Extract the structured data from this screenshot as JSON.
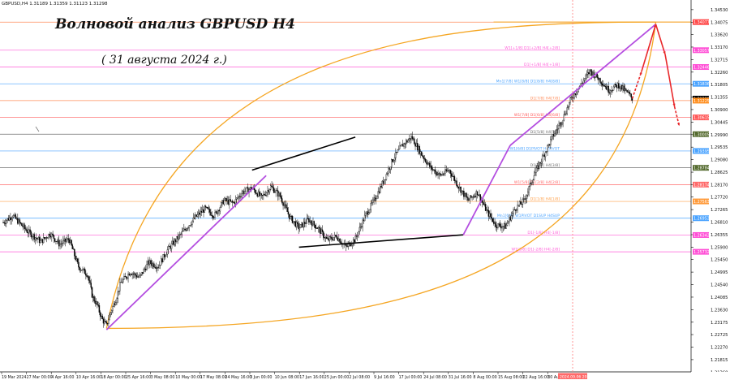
{
  "symbol_info": {
    "symbol": "GBPUSD,H4",
    "ohlc": "1.31189 1.31359 1.31123 1.31298"
  },
  "overlay": {
    "title": "Волновой анализ GBPUSD H4",
    "date": "( 31 августа 2024 г.)"
  },
  "colors": {
    "candle": "#000000",
    "trend_line": "#000000",
    "channel": "#b44ee0",
    "arc": "#f5a623",
    "forecast": "#e8282b",
    "current_price_bg": "#000000",
    "grid_blue": "#4aa3ff",
    "grid_pink": "#ff5bd8",
    "grid_orange": "#ff8c5a",
    "grid_gray": "#9a9a9a",
    "grid_green": "#3a6e3a"
  },
  "chart_data": {
    "type": "line",
    "title": "",
    "y_axis": {
      "ylim": [
        1.2137,
        1.3488
      ],
      "ticks": [
        "1.34530",
        "1.34075",
        "1.33620",
        "1.33170",
        "1.32715",
        "1.32260",
        "1.31805",
        "1.31355",
        "1.30900",
        "1.30445",
        "1.29990",
        "1.29535",
        "1.29080",
        "1.28625",
        "1.28170",
        "1.27720",
        "1.27265",
        "1.26810",
        "1.26355",
        "1.25900",
        "1.25450",
        "1.24995",
        "1.24540",
        "1.24085",
        "1.23630",
        "1.23175",
        "1.22725",
        "1.22270",
        "1.21815",
        "1.21360"
      ]
    },
    "x_axis": {
      "labels": [
        "19 Mar 2024",
        "27 Mar 00:00",
        "4 Apr 16:00",
        "10 Apr 16:00",
        "18 Apr 00:00",
        "25 Apr 16:00",
        "3 May 08:00",
        "10 May 00:00",
        "17 May 08:00",
        "24 May 16:00",
        "3 Jun 00:00",
        "10 Jun 08:00",
        "17 Jun 16:00",
        "25 Jun 00:00",
        "2 Jul 08:00",
        "9 Jul 16:00",
        "17 Jul 00:00",
        "24 Jul 08:00",
        "31 Jul 16:00",
        "8 Aug 00:00",
        "15 Aug 08:00",
        "22 Aug 16:00",
        "30 Aug 00:00"
      ],
      "highlighted_label": "2024.09.06 20:00"
    },
    "price_path": [
      [
        0,
        1.268
      ],
      [
        2,
        1.2705
      ],
      [
        5,
        1.265
      ],
      [
        8,
        1.261
      ],
      [
        10,
        1.264
      ],
      [
        12,
        1.26
      ],
      [
        14,
        1.262
      ],
      [
        16,
        1.252
      ],
      [
        18,
        1.249
      ],
      [
        19,
        1.241
      ],
      [
        20,
        1.238
      ],
      [
        21,
        1.233
      ],
      [
        22,
        1.2305
      ],
      [
        23,
        1.236
      ],
      [
        24,
        1.24
      ],
      [
        25,
        1.246
      ],
      [
        27,
        1.25
      ],
      [
        29,
        1.248
      ],
      [
        31,
        1.2535
      ],
      [
        33,
        1.252
      ],
      [
        35,
        1.258
      ],
      [
        37,
        1.262
      ],
      [
        39,
        1.266
      ],
      [
        41,
        1.27
      ],
      [
        43,
        1.273
      ],
      [
        45,
        1.2705
      ],
      [
        47,
        1.276
      ],
      [
        49,
        1.275
      ],
      [
        51,
        1.279
      ],
      [
        53,
        1.2805
      ],
      [
        55,
        1.277
      ],
      [
        57,
        1.281
      ],
      [
        59,
        1.2775
      ],
      [
        61,
        1.27
      ],
      [
        63,
        1.266
      ],
      [
        65,
        1.269
      ],
      [
        67,
        1.266
      ],
      [
        69,
        1.2615
      ],
      [
        71,
        1.263
      ],
      [
        73,
        1.259
      ],
      [
        75,
        1.262
      ],
      [
        77,
        1.27
      ],
      [
        79,
        1.276
      ],
      [
        81,
        1.283
      ],
      [
        83,
        1.291
      ],
      [
        85,
        1.296
      ],
      [
        87,
        1.299
      ],
      [
        89,
        1.293
      ],
      [
        91,
        1.288
      ],
      [
        93,
        1.285
      ],
      [
        95,
        1.287
      ],
      [
        97,
        1.281
      ],
      [
        99,
        1.276
      ],
      [
        101,
        1.279
      ],
      [
        103,
        1.272
      ],
      [
        105,
        1.267
      ],
      [
        107,
        1.2665
      ],
      [
        109,
        1.273
      ],
      [
        111,
        1.276
      ],
      [
        113,
        1.285
      ],
      [
        115,
        1.292
      ],
      [
        117,
        1.299
      ],
      [
        119,
        1.305
      ],
      [
        121,
        1.313
      ],
      [
        123,
        1.318
      ],
      [
        125,
        1.323
      ],
      [
        127,
        1.32
      ],
      [
        129,
        1.316
      ],
      [
        131,
        1.318
      ],
      [
        133,
        1.315
      ],
      [
        134,
        1.313
      ]
    ],
    "forecast_path": [
      [
        134,
        1.313
      ],
      [
        136,
        1.323
      ],
      [
        139,
        1.34
      ],
      [
        141,
        1.329
      ],
      [
        143,
        1.31
      ],
      [
        144,
        1.303
      ]
    ],
    "price_labels": [
      {
        "value": "1.34077",
        "price": 1.34077,
        "color": "#ff4a4a",
        "text": "#ffffff"
      },
      {
        "value": "1.33057",
        "price": 1.33057,
        "color": "#ff4fd6",
        "text": "#ffffff"
      },
      {
        "value": "1.32446",
        "price": 1.32446,
        "color": "#ff4fd6",
        "text": "#ffffff"
      },
      {
        "value": "1.31836",
        "price": 1.31836,
        "color": "#4aa3ff",
        "text": "#ffffff"
      },
      {
        "value": "1.31298",
        "price": 1.31298,
        "color": "#000000",
        "text": "#ffffff"
      },
      {
        "value": "1.31225",
        "price": 1.31225,
        "color": "#ff8c1a",
        "text": "#ffffff"
      },
      {
        "value": "1.30615",
        "price": 1.30615,
        "color": "#ff5a5a",
        "text": "#ffffff"
      },
      {
        "value": "1.30005",
        "price": 1.30005,
        "color": "#556b2f",
        "text": "#ffffff"
      },
      {
        "value": "1.29395",
        "price": 1.29395,
        "color": "#4aa3ff",
        "text": "#ffffff"
      },
      {
        "value": "1.28784",
        "price": 1.28784,
        "color": "#556b2f",
        "text": "#ffffff"
      },
      {
        "value": "1.28174",
        "price": 1.28174,
        "color": "#ff6a6a",
        "text": "#ffffff"
      },
      {
        "value": "1.27563",
        "price": 1.27563,
        "color": "#ff9a3a",
        "text": "#ffffff"
      },
      {
        "value": "1.26953",
        "price": 1.26953,
        "color": "#4aa3ff",
        "text": "#ffffff"
      },
      {
        "value": "1.26342",
        "price": 1.26342,
        "color": "#ff4fd6",
        "text": "#ffffff"
      },
      {
        "value": "1.25732",
        "price": 1.25732,
        "color": "#ff4fd6",
        "text": "#ffffff"
      }
    ],
    "level_lines": [
      {
        "price": 1.34077,
        "color": "#ff8c5a",
        "label": ""
      },
      {
        "price": 1.33057,
        "color": "#ff5bd8",
        "label": "W1[+1/8] D1[+2/8] H4[+2/8]"
      },
      {
        "price": 1.32446,
        "color": "#ff5bd8",
        "label": "D1[+1/8] H4[+1/8]"
      },
      {
        "price": 1.31836,
        "color": "#4aa3ff",
        "label": "Mn1[7/8] W1[8/8] D1[8/8] H4[8/8]"
      },
      {
        "price": 1.31225,
        "color": "#ff8c5a",
        "label": "D1[7/8] H4[7/8]"
      },
      {
        "price": 1.30615,
        "color": "#ff5a5a",
        "label": "W1[7/8] D1[6/8] H4[6/8]"
      },
      {
        "price": 1.30005,
        "color": "#6e6e6e",
        "label": "D1[5/8] H4[5/8]"
      },
      {
        "price": 1.29395,
        "color": "#4aa3ff",
        "label": "W1[6/8] D1PIVOT H4PIVOT"
      },
      {
        "price": 1.28784,
        "color": "#6e6e6e",
        "label": "D1[3/8] H4[3/8]"
      },
      {
        "price": 1.28174,
        "color": "#ff6a6a",
        "label": "W1[5/8] D1[2/8] H4[2/8]"
      },
      {
        "price": 1.27563,
        "color": "#ffa04a",
        "label": "D1[1/8] H4[1/8]"
      },
      {
        "price": 1.26953,
        "color": "#4aa3ff",
        "label": "Mn1[6/8] W1PIVOT D1SUP H4SUP"
      },
      {
        "price": 1.26342,
        "color": "#ff5bd8",
        "label": "D1[-1/8] H4[-1/8]"
      },
      {
        "price": 1.25732,
        "color": "#ff5bd8",
        "label": "W1[3/8] D1[-2/8] H4[-2/8]"
      }
    ],
    "trend_lines": [
      {
        "from": [
          53,
          1.287
        ],
        "to": [
          75,
          1.299
        ]
      },
      {
        "from": [
          63,
          1.259
        ],
        "to": [
          98,
          1.2635
        ]
      }
    ],
    "channel_lines": [
      {
        "from": [
          22,
          1.229
        ],
        "to": [
          56,
          1.285
        ]
      },
      {
        "from": [
          98,
          1.2635
        ],
        "to": [
          108,
          1.296
        ]
      },
      {
        "from": [
          108,
          1.296
        ],
        "to": [
          139,
          1.34
        ]
      }
    ]
  }
}
